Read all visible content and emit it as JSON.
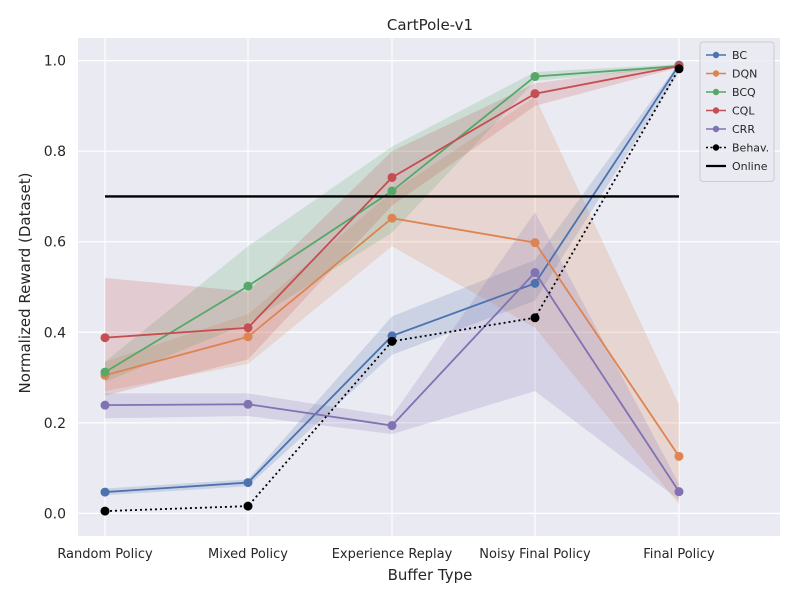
{
  "chart_data": {
    "type": "line",
    "title": "CartPole-v1",
    "xlabel": "Buffer Type",
    "ylabel": "Normalized Reward (Dataset)",
    "categories": [
      "Random Policy",
      "Mixed Policy",
      "Experience Replay",
      "Noisy Final Policy",
      "Final Policy"
    ],
    "ylim": [
      -0.05,
      1.05
    ],
    "yticks": [
      0.0,
      0.2,
      0.4,
      0.6,
      0.8,
      1.0
    ],
    "ytick_labels": [
      "0.0",
      "0.2",
      "0.4",
      "0.6",
      "0.8",
      "1.0"
    ],
    "grid": true,
    "legend_position": "top-right",
    "series": [
      {
        "name": "BC",
        "color": "#4c72b0",
        "style": "solid",
        "values": [
          0.047,
          0.068,
          0.392,
          0.508,
          0.99
        ],
        "band_low": [
          0.04,
          0.06,
          0.35,
          0.47,
          0.975
        ],
        "band_high": [
          0.055,
          0.075,
          0.435,
          0.56,
          0.995
        ]
      },
      {
        "name": "DQN",
        "color": "#dd8452",
        "style": "solid",
        "values": [
          0.305,
          0.39,
          0.652,
          0.598,
          0.126
        ],
        "band_low": [
          0.27,
          0.33,
          0.59,
          0.41,
          0.02
        ],
        "band_high": [
          0.335,
          0.44,
          0.71,
          0.92,
          0.24
        ]
      },
      {
        "name": "BCQ",
        "color": "#55a868",
        "style": "solid",
        "values": [
          0.312,
          0.502,
          0.712,
          0.965,
          0.988
        ],
        "band_low": [
          0.29,
          0.42,
          0.62,
          0.955,
          0.985
        ],
        "band_high": [
          0.335,
          0.59,
          0.81,
          0.975,
          0.992
        ]
      },
      {
        "name": "CQL",
        "color": "#c44e52",
        "style": "solid",
        "values": [
          0.388,
          0.41,
          0.742,
          0.927,
          0.988
        ],
        "band_low": [
          0.26,
          0.34,
          0.68,
          0.9,
          0.985
        ],
        "band_high": [
          0.52,
          0.49,
          0.8,
          0.95,
          0.992
        ]
      },
      {
        "name": "CRR",
        "color": "#8172b3",
        "style": "solid",
        "values": [
          0.239,
          0.241,
          0.194,
          0.532,
          0.048
        ],
        "band_low": [
          0.21,
          0.215,
          0.175,
          0.27,
          0.03
        ],
        "band_high": [
          0.265,
          0.265,
          0.215,
          0.665,
          0.065
        ]
      },
      {
        "name": "Behav.",
        "color": "#000000",
        "style": "dotted",
        "values": [
          0.005,
          0.016,
          0.38,
          0.432,
          0.982
        ]
      },
      {
        "name": "Online",
        "color": "#000000",
        "style": "hline",
        "values": [
          0.7,
          0.7,
          0.7,
          0.7,
          0.7
        ]
      }
    ]
  }
}
